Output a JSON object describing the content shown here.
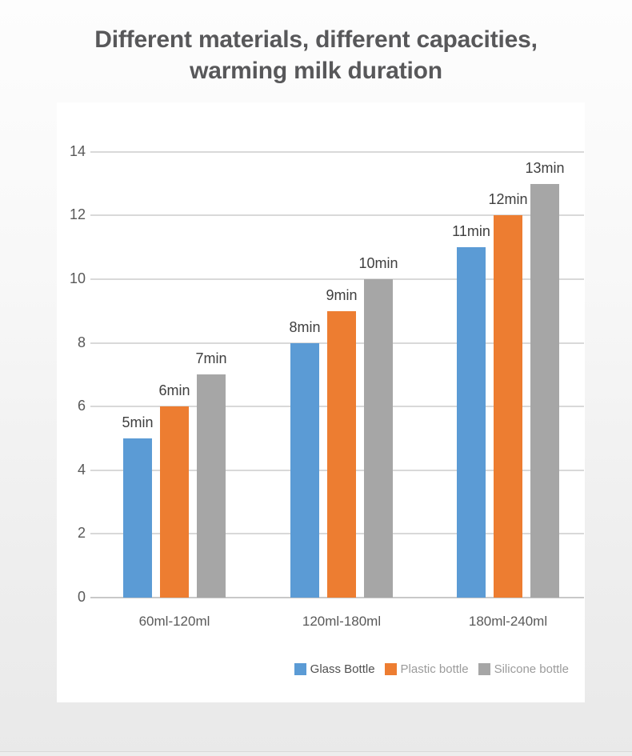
{
  "page": {
    "title_line1": "Different materials, different capacities,",
    "title_line2": "warming milk duration"
  },
  "chart_data": {
    "type": "bar",
    "title": "Different materials, different capacities, warming milk duration",
    "categories": [
      "60ml-120ml",
      "120ml-180ml",
      "180ml-240ml"
    ],
    "series": [
      {
        "name": "Glass Bottle",
        "values": [
          5,
          8,
          11
        ],
        "color": "#5B9BD5",
        "legend_text_color": "#4f4f4f"
      },
      {
        "name": "Plastic bottle",
        "values": [
          6,
          9,
          12
        ],
        "color": "#ED7D31",
        "legend_text_color": "#9b9b9b"
      },
      {
        "name": "Silicone bottle",
        "values": [
          7,
          10,
          13
        ],
        "color": "#A6A6A6",
        "legend_text_color": "#9b9b9b"
      }
    ],
    "data_labels": [
      [
        "5min",
        "6min",
        "7min"
      ],
      [
        "8min",
        "9min",
        "10min"
      ],
      [
        "11min",
        "12min",
        "13min"
      ]
    ],
    "data_label_suffix": "min",
    "xlabel": "",
    "ylabel": "",
    "ylim": [
      0,
      14
    ],
    "yticks": [
      0,
      2,
      4,
      6,
      8,
      10,
      12,
      14
    ],
    "grid": true,
    "legend_position": "bottom-right",
    "colors": {
      "gridline": "#d9d9d9",
      "axis_text": "#595959",
      "data_label_text": "#3f3f3f",
      "title_text": "#58585a"
    }
  }
}
